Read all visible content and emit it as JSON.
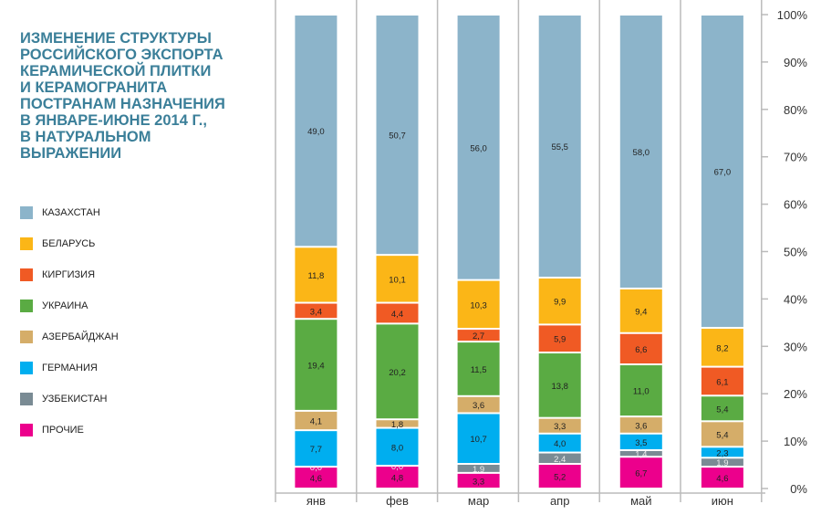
{
  "chart_data": {
    "type": "bar",
    "stacked": true,
    "title": "ИЗМЕНЕНИЕ СТРУКТУРЫ РОССИЙСКОГО ЭКСПОРТА КЕРАМИЧЕСКОЙ ПЛИТКИ И КЕРАМОГРАНИТА ПОСТРАНАМ НАЗНАЧЕНИЯ В ЯНВАРЕ-ИЮНЕ 2014 Г., В НАТУРАЛЬНОМ ВЫРАЖЕНИИ",
    "categories": [
      "янв",
      "фев",
      "мар",
      "апр",
      "май",
      "июн"
    ],
    "ylim": [
      0,
      100
    ],
    "yticks": [
      "0%",
      "10%",
      "20%",
      "30%",
      "40%",
      "50%",
      "60%",
      "70%",
      "80%",
      "90%",
      "100%"
    ],
    "legend_position": "left",
    "series": [
      {
        "name": "КАЗАХСТАН",
        "color": "#8cb4ca",
        "values": [
          "49,0",
          "50,7",
          "56,0",
          "55,5",
          "58,0",
          "67,0"
        ]
      },
      {
        "name": "БЕЛАРУСЬ",
        "color": "#fbb617",
        "values": [
          "11,8",
          "10,1",
          "10,3",
          "9,9",
          "9,4",
          "8,2"
        ]
      },
      {
        "name": "КИРГИЗИЯ",
        "color": "#f05a24",
        "values": [
          "3,4",
          "4,4",
          "2,7",
          "5,9",
          "6,6",
          "6,1"
        ]
      },
      {
        "name": "УКРАИНА",
        "color": "#5aab43",
        "values": [
          "19,4",
          "20,2",
          "11,5",
          "13,8",
          "11,0",
          "5,4"
        ]
      },
      {
        "name": "АЗЕРБАЙДЖАН",
        "color": "#d5ad69",
        "values": [
          "4,1",
          "1,8",
          "3,6",
          "3,3",
          "3,6",
          "5,4"
        ]
      },
      {
        "name": "ГЕРМАНИЯ",
        "color": "#00aeef",
        "values": [
          "7,7",
          "8,0",
          "10,7",
          "4,0",
          "3,5",
          "2,3"
        ]
      },
      {
        "name": "УЗБЕКИСТАН",
        "color": "#7a8b94",
        "values": [
          "0,0",
          "0,0",
          "1,9",
          "2,4",
          "1,4",
          "1,9"
        ]
      },
      {
        "name": "ПРОЧИЕ",
        "color": "#ec008c",
        "values": [
          "4,6",
          "4,8",
          "3,3",
          "5,2",
          "6,7",
          "4,6"
        ]
      }
    ]
  }
}
